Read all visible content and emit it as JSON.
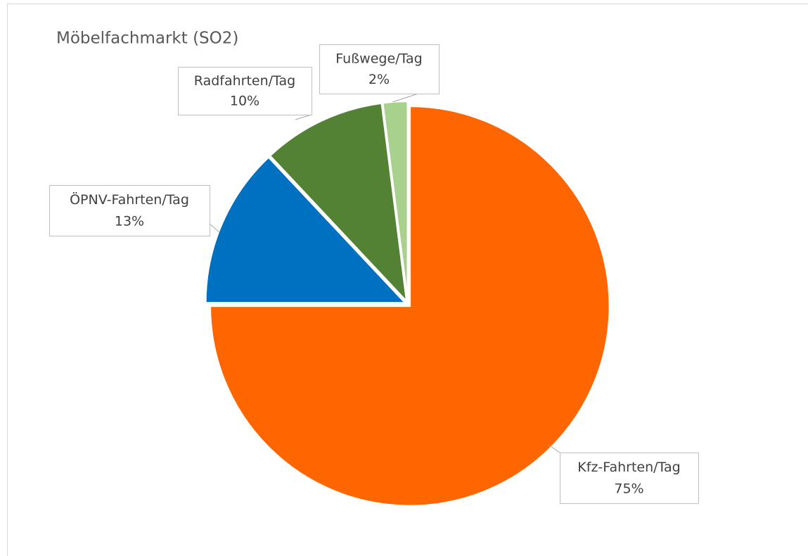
{
  "chart_data": {
    "type": "pie",
    "title": "Möbelfachmarkt (SO2)",
    "categories": [
      "Kfz-Fahrten/Tag",
      "ÖPNV-Fahrten/Tag",
      "Radfahrten/Tag",
      "Fußwege/Tag"
    ],
    "values": [
      75,
      13,
      10,
      2
    ],
    "value_labels": [
      "75%",
      "13%",
      "10%",
      "2%"
    ],
    "colors": [
      "#ff6600",
      "#0070c0",
      "#548235",
      "#a9d18e"
    ]
  }
}
